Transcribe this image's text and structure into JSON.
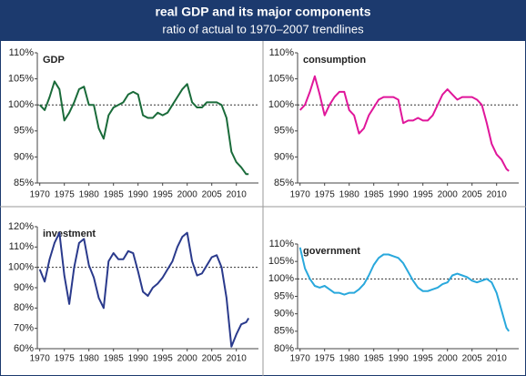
{
  "title": "real GDP and its major components",
  "subtitle": "ratio of actual to 1970–2007 trendlines",
  "chart_data": [
    {
      "type": "line",
      "title": "GDP",
      "color": "#1a6b3a",
      "reference_line": 100,
      "x": [
        1970,
        1971,
        1972,
        1973,
        1974,
        1975,
        1976,
        1977,
        1978,
        1979,
        1980,
        1981,
        1982,
        1983,
        1984,
        1985,
        1986,
        1987,
        1988,
        1989,
        1990,
        1991,
        1992,
        1993,
        1994,
        1995,
        1996,
        1997,
        1998,
        1999,
        2000,
        2001,
        2002,
        2003,
        2004,
        2005,
        2006,
        2007,
        2008,
        2009,
        2010,
        2011,
        2012,
        2012.5
      ],
      "values": [
        100,
        99,
        101.5,
        104.5,
        103,
        97,
        98.5,
        100.5,
        103,
        103.5,
        100,
        100,
        95.5,
        93.5,
        98,
        99.5,
        100,
        100.5,
        102,
        102.5,
        102,
        98,
        97.5,
        97.5,
        98.5,
        98,
        98.5,
        100,
        101.5,
        103,
        104,
        100.5,
        99.5,
        99.5,
        100.5,
        100.5,
        100.5,
        100,
        97.5,
        91,
        89,
        88,
        86.7,
        86.7
      ],
      "xlim": [
        1969.5,
        2014.5
      ],
      "xticks": [
        1970,
        1975,
        1980,
        1985,
        1990,
        1995,
        2000,
        2005,
        2010
      ],
      "ylim": [
        85,
        110
      ],
      "yticks": [
        {
          "value": 85,
          "label": "85%"
        },
        {
          "value": 90,
          "label": "90%"
        },
        {
          "value": 95,
          "label": "95%"
        },
        {
          "value": 100,
          "label": "100%"
        },
        {
          "value": 105,
          "label": "105%"
        },
        {
          "value": 110,
          "label": "110%"
        }
      ]
    },
    {
      "type": "line",
      "title": "consumption",
      "color": "#e0169a",
      "reference_line": 100,
      "x": [
        1970,
        1971,
        1972,
        1973,
        1974,
        1975,
        1976,
        1977,
        1978,
        1979,
        1980,
        1981,
        1982,
        1983,
        1984,
        1985,
        1986,
        1987,
        1988,
        1989,
        1990,
        1991,
        1992,
        1993,
        1994,
        1995,
        1996,
        1997,
        1998,
        1999,
        2000,
        2001,
        2002,
        2003,
        2004,
        2005,
        2006,
        2007,
        2008,
        2009,
        2010,
        2011,
        2012,
        2012.5
      ],
      "values": [
        99,
        100,
        102.5,
        105.5,
        102,
        98,
        100,
        101.5,
        102.5,
        102.5,
        99,
        98,
        94.5,
        95.5,
        98,
        99.5,
        101,
        101.5,
        101.5,
        101.5,
        101,
        96.5,
        97,
        97,
        97.5,
        97,
        97,
        98,
        100,
        102,
        103,
        102,
        101,
        101.5,
        101.5,
        101.5,
        101,
        100,
        96.5,
        92.5,
        90.5,
        89.5,
        87.7,
        87.3
      ],
      "xlim": [
        1969.5,
        2014.5
      ],
      "xticks": [
        1970,
        1975,
        1980,
        1985,
        1990,
        1995,
        2000,
        2005,
        2010
      ],
      "ylim": [
        85,
        110
      ],
      "yticks": [
        {
          "value": 85,
          "label": "85%"
        },
        {
          "value": 90,
          "label": "90%"
        },
        {
          "value": 95,
          "label": "95%"
        },
        {
          "value": 100,
          "label": "100%"
        },
        {
          "value": 105,
          "label": "105%"
        },
        {
          "value": 110,
          "label": "110%"
        }
      ]
    },
    {
      "type": "line",
      "title": "investment",
      "color": "#2a3a8c",
      "reference_line": 100,
      "x": [
        1970,
        1971,
        1972,
        1973,
        1974,
        1975,
        1976,
        1977,
        1978,
        1979,
        1980,
        1981,
        1982,
        1983,
        1984,
        1985,
        1986,
        1987,
        1988,
        1989,
        1990,
        1991,
        1992,
        1993,
        1994,
        1995,
        1996,
        1997,
        1998,
        1999,
        2000,
        2001,
        2002,
        2003,
        2004,
        2005,
        2006,
        2007,
        2008,
        2009,
        2010,
        2011,
        2012,
        2012.5
      ],
      "values": [
        99,
        93,
        104,
        112,
        117,
        96,
        82,
        100,
        112,
        114,
        101,
        95,
        85,
        80,
        103,
        107,
        104,
        104,
        108,
        107,
        98,
        88,
        86,
        90,
        92,
        95,
        99,
        103,
        110,
        115,
        117,
        103,
        96,
        97,
        101,
        105,
        106,
        100,
        85,
        61,
        67,
        72,
        73,
        75
      ],
      "xlim": [
        1969.5,
        2014.5
      ],
      "xticks": [
        1970,
        1975,
        1980,
        1985,
        1990,
        1995,
        2000,
        2005,
        2010
      ],
      "ylim": [
        60,
        120
      ],
      "yticks": [
        {
          "value": 60,
          "label": "60%"
        },
        {
          "value": 70,
          "label": "70%"
        },
        {
          "value": 80,
          "label": "80%"
        },
        {
          "value": 90,
          "label": "90%"
        },
        {
          "value": 100,
          "label": "100%"
        },
        {
          "value": 110,
          "label": "110%"
        },
        {
          "value": 120,
          "label": "120%"
        }
      ]
    },
    {
      "type": "line",
      "title": "government",
      "color": "#29a8dc",
      "reference_line": 100,
      "x": [
        1970,
        1971,
        1972,
        1973,
        1974,
        1975,
        1976,
        1977,
        1978,
        1979,
        1980,
        1981,
        1982,
        1983,
        1984,
        1985,
        1986,
        1987,
        1988,
        1989,
        1990,
        1991,
        1992,
        1993,
        1994,
        1995,
        1996,
        1997,
        1998,
        1999,
        2000,
        2001,
        2002,
        2003,
        2004,
        2005,
        2006,
        2007,
        2008,
        2009,
        2010,
        2011,
        2012,
        2012.5
      ],
      "values": [
        109,
        103,
        100,
        98,
        97.5,
        98,
        97,
        96,
        96,
        95.5,
        96,
        96,
        97,
        98.5,
        101,
        104,
        106,
        107,
        107,
        106.5,
        106,
        104.5,
        102,
        99.5,
        97.5,
        96.5,
        96.5,
        97,
        97.5,
        98.5,
        99,
        101,
        101.5,
        101,
        100.5,
        99.5,
        99,
        99.5,
        100,
        99,
        96,
        91,
        86,
        85
      ],
      "xlim": [
        1969.5,
        2014.5
      ],
      "xticks": [
        1970,
        1975,
        1980,
        1985,
        1990,
        1995,
        2000,
        2005,
        2010
      ],
      "ylim": [
        80,
        110
      ],
      "yticks": [
        {
          "value": 80,
          "label": "80%"
        },
        {
          "value": 85,
          "label": "85%"
        },
        {
          "value": 90,
          "label": "90%"
        },
        {
          "value": 95,
          "label": "95%"
        },
        {
          "value": 100,
          "label": "100%"
        },
        {
          "value": 105,
          "label": "105%"
        },
        {
          "value": 110,
          "label": "110%"
        }
      ]
    }
  ]
}
